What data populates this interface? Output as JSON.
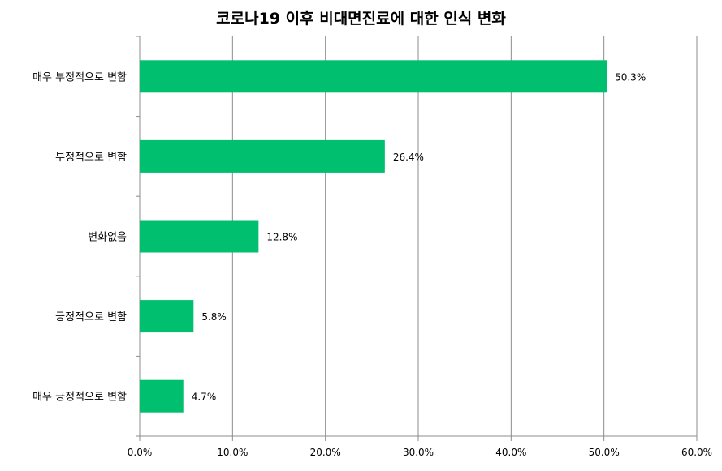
{
  "chart_data": {
    "type": "bar",
    "orientation": "horizontal",
    "title": "코로나19 이후 비대면진료에 대한 인식 변화",
    "categories": [
      "매우 부정적으로 변함",
      "부정적으로 변함",
      "변화없음",
      "긍정적으로 변함",
      "매우 긍정적으로 변함"
    ],
    "values": [
      50.3,
      26.4,
      12.8,
      5.8,
      4.7
    ],
    "value_labels": [
      "50.3%",
      "26.4%",
      "12.8%",
      "5.8%",
      "4.7%"
    ],
    "xlim": [
      0,
      60
    ],
    "x_ticks": [
      0,
      10,
      20,
      30,
      40,
      50,
      60
    ],
    "x_tick_labels": [
      "0.0%",
      "10.0%",
      "20.0%",
      "30.0%",
      "40.0%",
      "50.0%",
      "60.0%"
    ],
    "grid": "vertical",
    "legend": "none",
    "bar_color": "#00BF6F",
    "grid_color": "#8C8C8C"
  }
}
